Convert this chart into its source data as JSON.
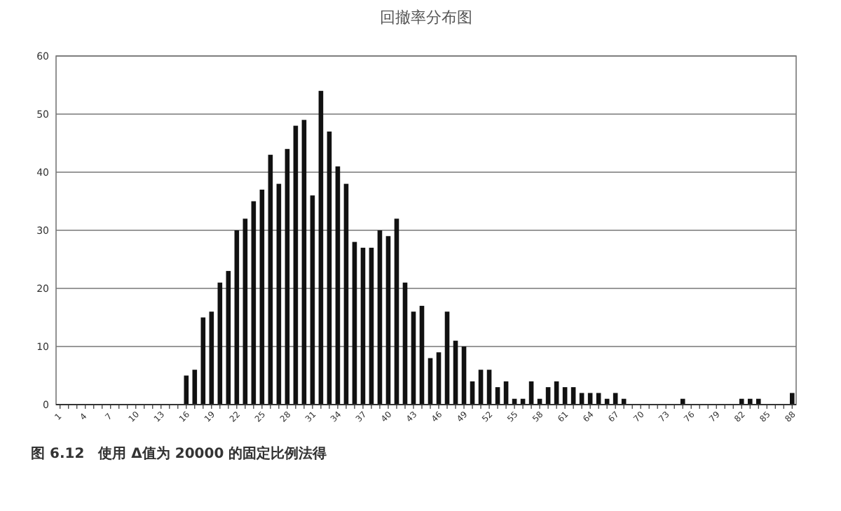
{
  "chart_data": {
    "type": "bar",
    "title": "回撤率分布图",
    "categories": [
      "1",
      null,
      null,
      "4",
      null,
      null,
      "7",
      null,
      null,
      "10",
      null,
      null,
      "13",
      null,
      null,
      "16",
      null,
      null,
      "19",
      null,
      null,
      "22",
      null,
      null,
      "25",
      null,
      null,
      "28",
      null,
      null,
      "31",
      null,
      null,
      "34",
      null,
      null,
      "37",
      null,
      null,
      "40",
      null,
      null,
      "43",
      null,
      null,
      "46",
      null,
      null,
      "49",
      null,
      null,
      "52",
      null,
      null,
      "55",
      null,
      null,
      "58",
      null,
      null,
      "61",
      null,
      null,
      "64",
      null,
      null,
      "67",
      null,
      null,
      "70",
      null,
      null,
      "73",
      null,
      null,
      "76",
      null,
      null,
      "79",
      null,
      null,
      "82",
      null,
      null,
      "85",
      null,
      null,
      "88"
    ],
    "values": [
      0,
      0,
      0,
      0,
      0,
      0,
      0,
      0,
      0,
      0,
      0,
      0,
      0,
      0,
      0,
      5,
      6,
      15,
      16,
      21,
      23,
      30,
      32,
      35,
      37,
      43,
      38,
      44,
      48,
      49,
      36,
      54,
      47,
      41,
      38,
      28,
      27,
      27,
      30,
      29,
      32,
      21,
      16,
      17,
      8,
      9,
      16,
      11,
      10,
      4,
      6,
      6,
      3,
      4,
      1,
      1,
      4,
      1,
      3,
      4,
      3,
      3,
      2,
      2,
      2,
      1,
      2,
      1,
      0,
      0,
      0,
      0,
      0,
      0,
      1,
      0,
      0,
      0,
      0,
      0,
      0,
      1,
      1,
      1,
      0,
      0,
      0,
      2
    ],
    "color": "#111111",
    "ylim": [
      0,
      60
    ],
    "yticks": [
      0,
      10,
      20,
      30,
      40,
      50,
      60
    ],
    "grid": "y",
    "annotations": [
      "图 6.12　使用 Δ值为 20000 的固定比例法得"
    ]
  }
}
